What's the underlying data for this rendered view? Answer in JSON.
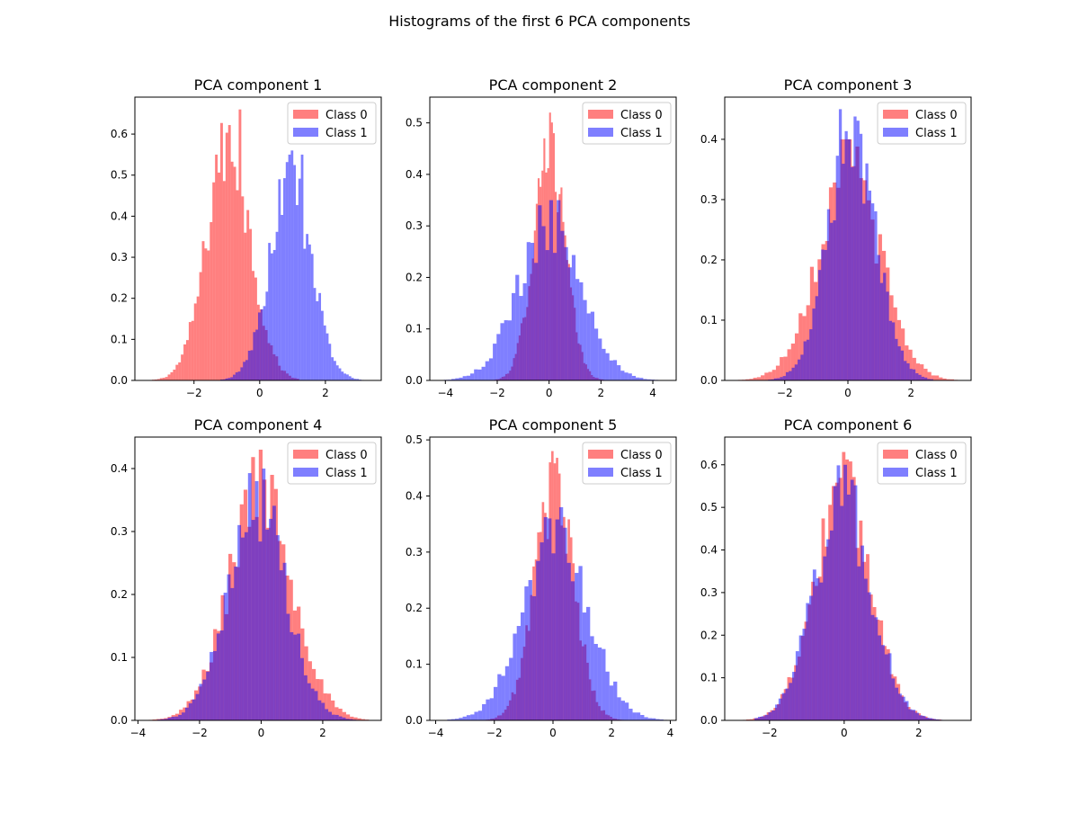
{
  "figure": {
    "suptitle": "Histograms of the first 6 PCA components"
  },
  "colors": {
    "class0": "#ff0000",
    "class1": "#0000ff",
    "alpha": 0.5
  },
  "chart_data": [
    {
      "type": "histogram",
      "title": "PCA component 1",
      "xlim": [
        -3.8,
        3.7
      ],
      "ylim": [
        0,
        0.69
      ],
      "xticks": [
        -2,
        0,
        2
      ],
      "yticks": [
        0.0,
        0.1,
        0.2,
        0.3,
        0.4,
        0.5,
        0.6
      ],
      "legend": "top-right",
      "grid": false,
      "density": true,
      "series": [
        {
          "name": "Class 0",
          "color": "#ff0000",
          "x_range": [
            -3.6,
            1.2
          ],
          "peaks": [
            [
              -0.6,
              0.66
            ],
            [
              -0.9,
              0.61
            ],
            [
              -1.0,
              0.58
            ],
            [
              -1.3,
              0.55
            ]
          ]
        },
        {
          "name": "Class 1",
          "color": "#0000ff",
          "x_range": [
            -1.2,
            3.4
          ],
          "peaks": [
            [
              1.0,
              0.56
            ],
            [
              1.3,
              0.55
            ],
            [
              0.9,
              0.55
            ],
            [
              0.6,
              0.49
            ]
          ]
        }
      ]
    },
    {
      "type": "histogram",
      "title": "PCA component 2",
      "xlim": [
        -4.6,
        4.9
      ],
      "ylim": [
        0,
        0.55
      ],
      "xticks": [
        -4,
        -2,
        0,
        2,
        4
      ],
      "yticks": [
        0.0,
        0.1,
        0.2,
        0.3,
        0.4,
        0.5
      ],
      "legend": "top-right",
      "grid": false,
      "density": true,
      "series": [
        {
          "name": "Class 0",
          "color": "#ff0000",
          "x_range": [
            -2.2,
            2.2
          ],
          "peaks": [
            [
              0.0,
              0.52
            ],
            [
              0.2,
              0.48
            ],
            [
              -0.2,
              0.47
            ]
          ]
        },
        {
          "name": "Class 1",
          "color": "#0000ff",
          "x_range": [
            -4.2,
            4.5
          ],
          "peaks": [
            [
              0.3,
              0.35
            ],
            [
              0.1,
              0.35
            ],
            [
              -0.3,
              0.34
            ]
          ]
        }
      ]
    },
    {
      "type": "histogram",
      "title": "PCA component 3",
      "xlim": [
        -3.9,
        3.9
      ],
      "ylim": [
        0,
        0.47
      ],
      "xticks": [
        -2,
        0,
        2
      ],
      "yticks": [
        0.0,
        0.1,
        0.2,
        0.3,
        0.4
      ],
      "legend": "top-right",
      "grid": false,
      "density": true,
      "series": [
        {
          "name": "Class 0",
          "color": "#ff0000",
          "x_range": [
            -3.6,
            3.6
          ],
          "peaks": [
            [
              -0.2,
              0.4
            ],
            [
              0.0,
              0.4
            ],
            [
              0.3,
              0.36
            ]
          ]
        },
        {
          "name": "Class 1",
          "color": "#0000ff",
          "x_range": [
            -2.9,
            2.7
          ],
          "peaks": [
            [
              -0.2,
              0.45
            ],
            [
              0.0,
              0.4
            ],
            [
              0.6,
              0.36
            ]
          ]
        }
      ]
    },
    {
      "type": "histogram",
      "title": "PCA component 4",
      "xlim": [
        -4.1,
        3.9
      ],
      "ylim": [
        0,
        0.45
      ],
      "xticks": [
        -4,
        -2,
        0,
        2
      ],
      "yticks": [
        0.0,
        0.1,
        0.2,
        0.3,
        0.4
      ],
      "legend": "top-right",
      "grid": false,
      "density": true,
      "series": [
        {
          "name": "Class 0",
          "color": "#ff0000",
          "x_range": [
            -3.9,
            3.5
          ],
          "peaks": [
            [
              0.0,
              0.43
            ],
            [
              -0.3,
              0.4
            ],
            [
              0.3,
              0.39
            ]
          ]
        },
        {
          "name": "Class 1",
          "color": "#0000ff",
          "x_range": [
            -3.6,
            3.2
          ],
          "peaks": [
            [
              0.1,
              0.4
            ],
            [
              -0.4,
              0.39
            ],
            [
              -0.1,
              0.38
            ]
          ]
        }
      ]
    },
    {
      "type": "histogram",
      "title": "PCA component 5",
      "xlim": [
        -4.2,
        4.2
      ],
      "ylim": [
        0,
        0.505
      ],
      "xticks": [
        -4,
        -2,
        0,
        2,
        4
      ],
      "yticks": [
        0.0,
        0.1,
        0.2,
        0.3,
        0.4,
        0.5
      ],
      "legend": "top-right",
      "grid": false,
      "density": true,
      "series": [
        {
          "name": "Class 0",
          "color": "#ff0000",
          "x_range": [
            -2.3,
            2.5
          ],
          "peaks": [
            [
              0.0,
              0.48
            ],
            [
              -0.1,
              0.46
            ],
            [
              0.2,
              0.44
            ]
          ]
        },
        {
          "name": "Class 1",
          "color": "#0000ff",
          "x_range": [
            -4.0,
            3.9
          ],
          "peaks": [
            [
              0.3,
              0.38
            ],
            [
              -0.1,
              0.36
            ],
            [
              0.1,
              0.35
            ]
          ]
        }
      ]
    },
    {
      "type": "histogram",
      "title": "PCA component 6",
      "xlim": [
        -3.2,
        3.4
      ],
      "ylim": [
        0,
        0.665
      ],
      "xticks": [
        -2,
        0,
        2
      ],
      "yticks": [
        0.0,
        0.1,
        0.2,
        0.3,
        0.4,
        0.5,
        0.6
      ],
      "legend": "top-right",
      "grid": false,
      "density": true,
      "series": [
        {
          "name": "Class 0",
          "color": "#ff0000",
          "x_range": [
            -2.9,
            2.6
          ],
          "peaks": [
            [
              0.0,
              0.63
            ],
            [
              0.2,
              0.58
            ],
            [
              -0.3,
              0.55
            ]
          ]
        },
        {
          "name": "Class 1",
          "color": "#0000ff",
          "x_range": [
            -2.4,
            3.1
          ],
          "peaks": [
            [
              0.0,
              0.6
            ],
            [
              -0.2,
              0.55
            ],
            [
              0.1,
              0.53
            ]
          ]
        }
      ]
    }
  ]
}
